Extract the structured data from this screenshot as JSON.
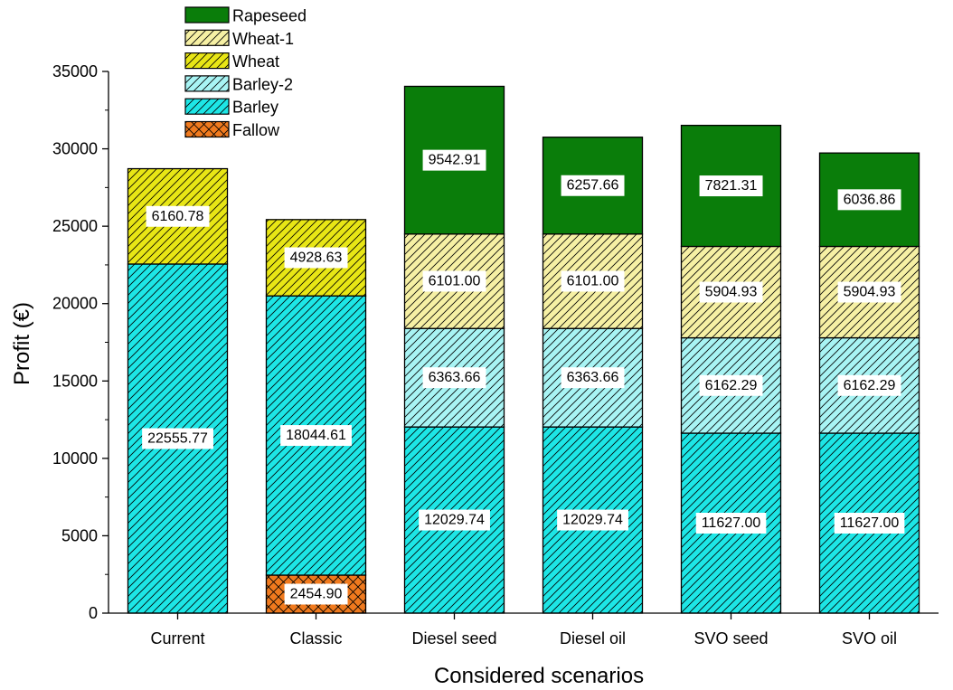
{
  "chart_data": {
    "type": "bar",
    "stacked": true,
    "title": "",
    "xlabel": "Considered scenarios",
    "ylabel": "Profit (€)",
    "ylim": [
      0,
      35000
    ],
    "yticks": [
      "0",
      "5000",
      "10000",
      "15000",
      "20000",
      "25000",
      "30000",
      "35000"
    ],
    "categories": [
      "Current",
      "Classic",
      "Diesel seed",
      "Diesel oil",
      "SVO seed",
      "SVO oil"
    ],
    "grid": false,
    "legend_position": "top-left",
    "legend_order": [
      "Rapeseed",
      "Wheat-1",
      "Wheat",
      "Barley-2",
      "Barley",
      "Fallow"
    ],
    "series": [
      {
        "name": "Fallow",
        "color": "#f07a1e",
        "pattern": "crosshatch",
        "values": [
          0,
          2454.9,
          0,
          0,
          0,
          0
        ],
        "labels": [
          "",
          "2454.90",
          "",
          "",
          "",
          ""
        ]
      },
      {
        "name": "Barley",
        "color": "#1de6e6",
        "pattern": "diagonal",
        "values": [
          22555.77,
          18044.61,
          12029.74,
          12029.74,
          11627.0,
          11627.0
        ],
        "labels": [
          "22555.77",
          "18044.61",
          "12029.74",
          "12029.74",
          "11627.00",
          "11627.00"
        ]
      },
      {
        "name": "Barley-2",
        "color": "#a8f4f4",
        "pattern": "diagonal",
        "values": [
          0,
          0,
          6363.66,
          6363.66,
          6162.29,
          6162.29
        ],
        "labels": [
          "",
          "",
          "6363.66",
          "6363.66",
          "6162.29",
          "6162.29"
        ]
      },
      {
        "name": "Wheat",
        "color": "#e8e615",
        "pattern": "diagonal",
        "values": [
          6160.78,
          4928.63,
          0,
          0,
          0,
          0
        ],
        "labels": [
          "6160.78",
          "4928.63",
          "",
          "",
          "",
          ""
        ]
      },
      {
        "name": "Wheat-1",
        "color": "#f6f0a4",
        "pattern": "diagonal",
        "values": [
          0,
          0,
          6101.0,
          6101.0,
          5904.93,
          5904.93
        ],
        "labels": [
          "",
          "",
          "6101.00",
          "6101.00",
          "5904.93",
          "5904.93"
        ]
      },
      {
        "name": "Rapeseed",
        "color": "#0a7d0a",
        "pattern": "solid",
        "values": [
          0,
          0,
          9542.91,
          6257.66,
          7821.31,
          6036.86
        ],
        "labels": [
          "",
          "",
          "9542.91",
          "6257.66",
          "7821.31",
          "6036.86"
        ]
      }
    ]
  }
}
